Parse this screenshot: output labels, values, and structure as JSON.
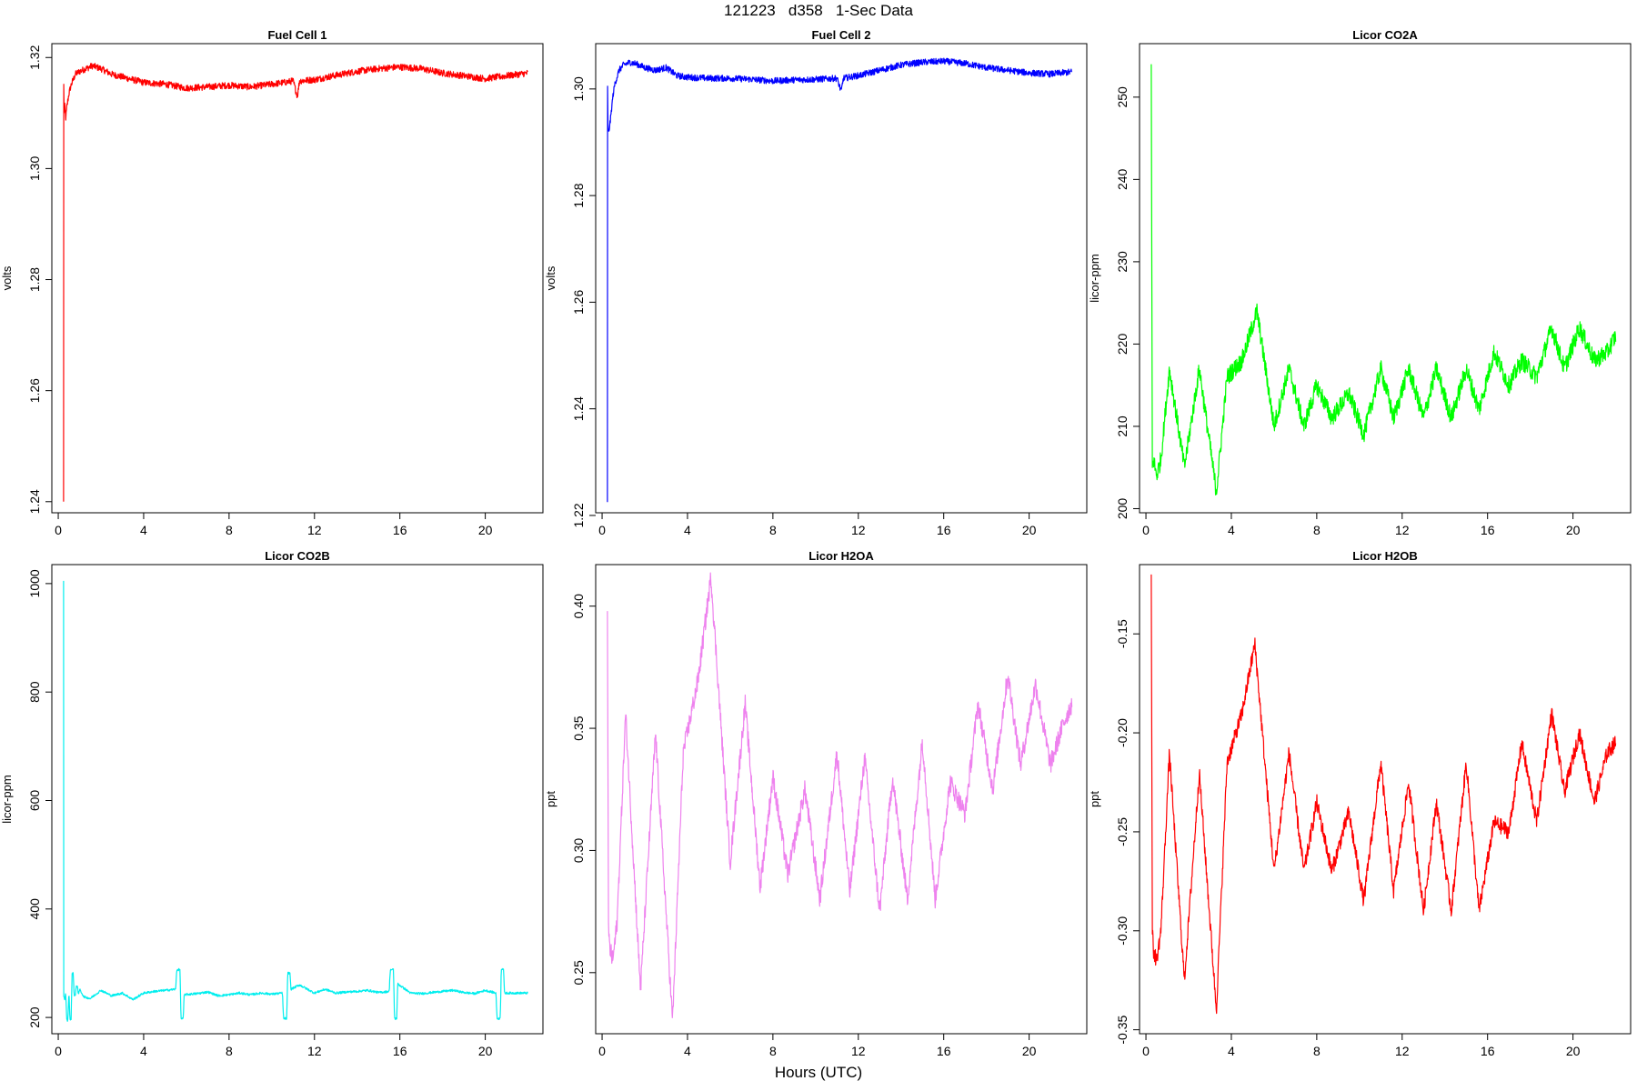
{
  "page": {
    "title": "121223   d358   1-Sec Data",
    "xlabel": "Hours (UTC)"
  },
  "chart_data": [
    {
      "type": "line",
      "title": "Fuel Cell 1",
      "ylabel": "volts",
      "color": "#ff0000",
      "xlim": [
        -0.3,
        22.7
      ],
      "ylim": [
        1.238,
        1.3225
      ],
      "xticks": [
        0,
        4,
        8,
        12,
        16,
        20
      ],
      "yticks": [
        1.24,
        1.26,
        1.28,
        1.3,
        1.32
      ],
      "ytick_labels": [
        "1.24",
        "1.26",
        "1.28",
        "1.30",
        "1.32"
      ],
      "noise": 0.0006,
      "x": [
        0.25,
        0.26,
        0.27,
        0.3,
        0.35,
        0.4,
        0.5,
        0.6,
        0.8,
        1.0,
        1.3,
        1.6,
        2.0,
        2.5,
        3.0,
        3.5,
        4.0,
        5.0,
        6.0,
        7.0,
        8.0,
        9.0,
        10.0,
        10.6,
        11.0,
        11.2,
        11.3,
        12.0,
        13.0,
        14.0,
        15.0,
        16.0,
        17.0,
        18.0,
        19.0,
        20.0,
        21.0,
        22.0
      ],
      "y": [
        1.24,
        1.315,
        1.31,
        1.3115,
        1.309,
        1.311,
        1.3135,
        1.315,
        1.317,
        1.3175,
        1.318,
        1.3185,
        1.318,
        1.317,
        1.3165,
        1.316,
        1.3155,
        1.3152,
        1.3145,
        1.3147,
        1.315,
        1.3147,
        1.3152,
        1.3155,
        1.3158,
        1.313,
        1.3158,
        1.316,
        1.3168,
        1.3175,
        1.318,
        1.3183,
        1.318,
        1.3172,
        1.3167,
        1.3162,
        1.3167,
        1.3172
      ]
    },
    {
      "type": "line",
      "title": "Fuel Cell 2",
      "ylabel": "volts",
      "color": "#0000ff",
      "xlim": [
        -0.3,
        22.7
      ],
      "ylim": [
        1.2205,
        1.3085
      ],
      "xticks": [
        0,
        4,
        8,
        12,
        16,
        20
      ],
      "yticks": [
        1.22,
        1.24,
        1.26,
        1.28,
        1.3
      ],
      "ytick_labels": [
        "1.22",
        "1.24",
        "1.26",
        "1.28",
        "1.30"
      ],
      "noise": 0.0006,
      "x": [
        0.25,
        0.26,
        0.27,
        0.3,
        0.4,
        0.5,
        0.6,
        0.8,
        1.0,
        1.3,
        1.6,
        2.0,
        2.5,
        3.0,
        3.5,
        4.0,
        5.0,
        6.0,
        7.0,
        8.0,
        9.0,
        10.0,
        11.0,
        11.2,
        11.3,
        12.0,
        13.0,
        14.0,
        15.0,
        16.0,
        17.0,
        18.0,
        19.0,
        20.0,
        21.0,
        22.0
      ],
      "y": [
        1.2225,
        1.3005,
        1.2935,
        1.2915,
        1.2945,
        1.2985,
        1.301,
        1.3035,
        1.3045,
        1.305,
        1.3047,
        1.304,
        1.3035,
        1.304,
        1.3025,
        1.3022,
        1.302,
        1.302,
        1.3018,
        1.3015,
        1.3017,
        1.3018,
        1.302,
        1.2995,
        1.302,
        1.3025,
        1.3035,
        1.3045,
        1.305,
        1.3052,
        1.3048,
        1.304,
        1.3035,
        1.303,
        1.3028,
        1.3032
      ]
    },
    {
      "type": "line",
      "title": "Licor CO2A",
      "ylabel": "licor-ppm",
      "color": "#00ff00",
      "xlim": [
        -0.3,
        22.7
      ],
      "ylim": [
        199.5,
        256.5
      ],
      "xticks": [
        0,
        4,
        8,
        12,
        16,
        20
      ],
      "yticks": [
        200,
        210,
        220,
        230,
        240,
        250
      ],
      "ytick_labels": [
        "200",
        "210",
        "220",
        "230",
        "240",
        "250"
      ],
      "noise": 1.1,
      "x": [
        0.25,
        0.3,
        0.35,
        0.5,
        0.7,
        1.1,
        1.8,
        2.5,
        3.3,
        3.8,
        4.5,
        5.2,
        6.0,
        6.7,
        7.4,
        8.0,
        8.7,
        9.5,
        10.2,
        11.0,
        11.6,
        12.3,
        13.0,
        13.6,
        14.3,
        15.0,
        15.6,
        16.3,
        17.0,
        17.6,
        18.3,
        19.0,
        19.6,
        20.3,
        21.0,
        21.6,
        22.0
      ],
      "y": [
        254,
        205,
        206,
        204,
        206,
        217,
        205,
        217,
        202,
        216,
        218,
        224,
        210,
        217,
        210,
        215,
        211,
        214,
        209,
        217,
        211,
        217,
        211,
        217,
        211,
        217,
        212,
        219,
        215,
        218,
        216,
        222,
        217,
        222,
        218,
        219,
        221
      ]
    },
    {
      "type": "line",
      "title": "Licor CO2B",
      "ylabel": "licor-ppm",
      "color": "#00eeee",
      "xlim": [
        -0.3,
        22.7
      ],
      "ylim": [
        170,
        1035
      ],
      "xticks": [
        0,
        4,
        8,
        12,
        16,
        20
      ],
      "yticks": [
        200,
        400,
        600,
        800,
        1000
      ],
      "ytick_labels": [
        "200",
        "400",
        "600",
        "800",
        "1000"
      ],
      "noise": 2,
      "x": [
        0.25,
        0.26,
        0.3,
        0.35,
        0.4,
        0.45,
        0.5,
        0.55,
        0.6,
        0.65,
        0.7,
        0.75,
        0.8,
        0.85,
        0.9,
        0.95,
        1.0,
        1.2,
        1.5,
        2.0,
        2.5,
        3.0,
        3.5,
        4.0,
        4.5,
        5.0,
        5.5,
        5.55,
        5.7,
        5.75,
        5.85,
        5.9,
        6.5,
        7.0,
        7.5,
        8.0,
        8.5,
        9.0,
        9.5,
        10.0,
        10.5,
        10.55,
        10.7,
        10.75,
        10.85,
        10.9,
        11.3,
        12.0,
        12.5,
        13.0,
        13.5,
        14.0,
        14.5,
        15.0,
        15.5,
        15.55,
        15.7,
        15.75,
        15.85,
        15.9,
        16.5,
        17.0,
        17.5,
        18.0,
        18.5,
        19.0,
        19.5,
        20.0,
        20.5,
        20.55,
        20.7,
        20.75,
        20.85,
        20.9,
        21.5,
        22.0
      ],
      "y": [
        1005,
        240,
        232,
        245,
        195,
        195,
        248,
        195,
        195,
        282,
        282,
        240,
        240,
        258,
        258,
        240,
        252,
        238,
        235,
        250,
        240,
        245,
        233,
        245,
        248,
        250,
        252,
        288,
        288,
        198,
        198,
        242,
        244,
        247,
        240,
        242,
        245,
        242,
        245,
        243,
        245,
        198,
        198,
        282,
        282,
        252,
        260,
        245,
        252,
        245,
        247,
        248,
        250,
        246,
        248,
        288,
        288,
        198,
        198,
        262,
        245,
        244,
        246,
        248,
        250,
        246,
        244,
        250,
        245,
        198,
        198,
        290,
        290,
        245,
        245,
        245
      ]
    },
    {
      "type": "line",
      "title": "Licor H2OA",
      "ylabel": "ppt",
      "color": "#ee82ee",
      "xlim": [
        -0.3,
        22.7
      ],
      "ylim": [
        0.225,
        0.417
      ],
      "xticks": [
        0,
        4,
        8,
        12,
        16,
        20
      ],
      "yticks": [
        0.25,
        0.3,
        0.35,
        0.4
      ],
      "ytick_labels": [
        "0.25",
        "0.30",
        "0.35",
        "0.40"
      ],
      "noise": 0.004,
      "x": [
        0.25,
        0.3,
        0.35,
        0.5,
        0.7,
        1.1,
        1.8,
        2.5,
        3.3,
        3.8,
        4.5,
        5.1,
        6.0,
        6.7,
        7.4,
        8.0,
        8.7,
        9.5,
        10.2,
        11.0,
        11.6,
        12.3,
        13.0,
        13.6,
        14.3,
        15.0,
        15.6,
        16.3,
        17.0,
        17.6,
        18.3,
        19.0,
        19.6,
        20.3,
        21.0,
        21.6,
        22.0
      ],
      "y": [
        0.398,
        0.27,
        0.26,
        0.255,
        0.27,
        0.356,
        0.243,
        0.348,
        0.23,
        0.34,
        0.37,
        0.412,
        0.295,
        0.36,
        0.285,
        0.33,
        0.29,
        0.325,
        0.28,
        0.34,
        0.283,
        0.338,
        0.275,
        0.33,
        0.28,
        0.345,
        0.28,
        0.328,
        0.315,
        0.36,
        0.325,
        0.372,
        0.335,
        0.368,
        0.335,
        0.352,
        0.36
      ]
    },
    {
      "type": "line",
      "title": "Licor H2OB",
      "ylabel": "ppt",
      "color": "#ff0000",
      "xlim": [
        -0.3,
        22.7
      ],
      "ylim": [
        -0.352,
        -0.115
      ],
      "xticks": [
        0,
        4,
        8,
        12,
        16,
        20
      ],
      "yticks": [
        -0.35,
        -0.3,
        -0.25,
        -0.2,
        -0.15
      ],
      "ytick_labels": [
        "-0.35",
        "-0.30",
        "-0.25",
        "-0.20",
        "-0.15"
      ],
      "noise": 0.004,
      "x": [
        0.25,
        0.3,
        0.35,
        0.5,
        0.7,
        1.1,
        1.8,
        2.5,
        3.3,
        3.8,
        4.5,
        5.1,
        6.0,
        6.7,
        7.4,
        8.0,
        8.7,
        9.5,
        10.2,
        11.0,
        11.6,
        12.3,
        13.0,
        13.6,
        14.3,
        15.0,
        15.6,
        16.3,
        17.0,
        17.6,
        18.3,
        19.0,
        19.6,
        20.3,
        21.0,
        21.6,
        22.0
      ],
      "y": [
        -0.12,
        -0.3,
        -0.31,
        -0.315,
        -0.3,
        -0.21,
        -0.325,
        -0.22,
        -0.34,
        -0.215,
        -0.19,
        -0.155,
        -0.27,
        -0.21,
        -0.27,
        -0.235,
        -0.27,
        -0.24,
        -0.285,
        -0.215,
        -0.28,
        -0.225,
        -0.29,
        -0.235,
        -0.29,
        -0.215,
        -0.29,
        -0.245,
        -0.25,
        -0.205,
        -0.245,
        -0.19,
        -0.23,
        -0.2,
        -0.235,
        -0.21,
        -0.205
      ]
    }
  ]
}
